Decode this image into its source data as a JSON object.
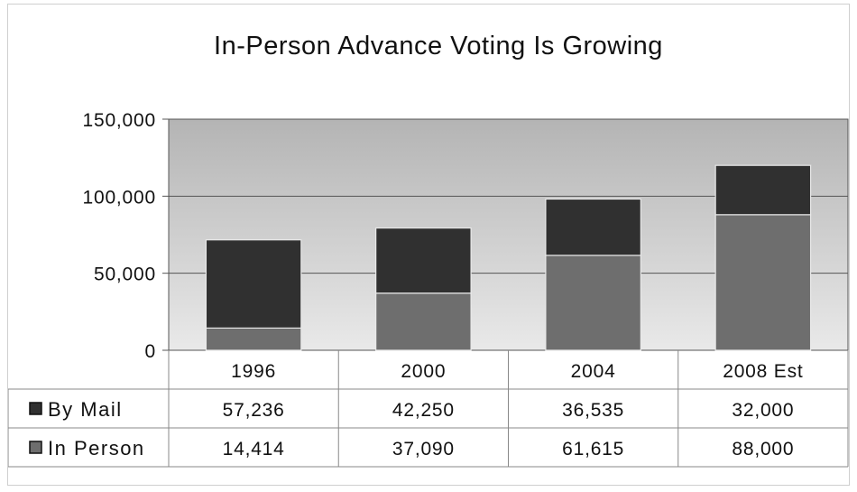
{
  "chart_data": {
    "type": "bar",
    "stacked": true,
    "title": "In-Person Advance Voting Is Growing",
    "categories": [
      "1996",
      "2000",
      "2004",
      "2008 Est"
    ],
    "series": [
      {
        "name": "In Person",
        "values": [
          14414,
          37090,
          61615,
          88000
        ],
        "value_labels": [
          "14,414",
          "37,090",
          "61,615",
          "88,000"
        ],
        "color": "#6e6e6e"
      },
      {
        "name": "By Mail",
        "values": [
          57236,
          42250,
          36535,
          32000
        ],
        "value_labels": [
          "57,236",
          "42,250",
          "36,535",
          "32,000"
        ],
        "color": "#303030"
      }
    ],
    "ylim": [
      0,
      150000
    ],
    "yticks": [
      0,
      50000,
      100000,
      150000
    ],
    "ytick_labels": [
      "0",
      "50,000",
      "100,000",
      "150,000"
    ],
    "grid": true,
    "legend": "data-table",
    "table_row_order": [
      "By Mail",
      "In Person"
    ]
  }
}
